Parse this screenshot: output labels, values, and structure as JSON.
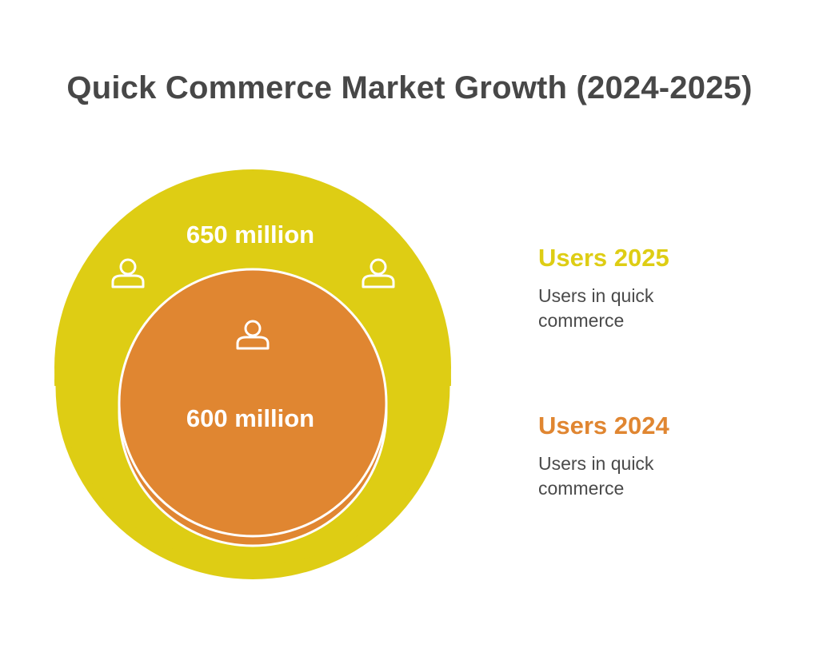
{
  "title": "Quick Commerce Market Growth (2024-2025)",
  "circles": {
    "outer": {
      "value_label": "650 million",
      "color": "#DECD14",
      "rim_color": "#DECD14"
    },
    "inner": {
      "value_label": "600 million",
      "color": "#E08631"
    }
  },
  "legend": [
    {
      "heading": "Users 2025",
      "description": "Users in quick commerce",
      "color": "#DECD14"
    },
    {
      "heading": "Users 2024",
      "description": "Users in quick commerce",
      "color": "#E08631"
    }
  ],
  "icons": {
    "person": "person-outline-icon"
  }
}
